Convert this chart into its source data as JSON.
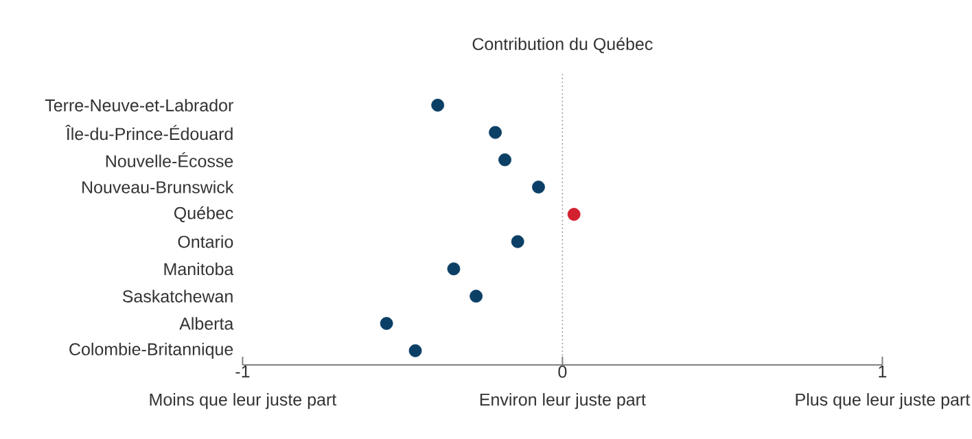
{
  "chart_data": {
    "type": "scatter",
    "title": "Contribution du Québec",
    "orientation": "horizontal",
    "marker": "circle",
    "categories": [
      "Terre-Neuve-et-Labrador",
      "Île-du-Prince-Édouard",
      "Nouvelle-Écosse",
      "Nouveau-Brunswick",
      "Québec",
      "Ontario",
      "Manitoba",
      "Saskatchewan",
      "Alberta",
      "Colombie-Britannique"
    ],
    "values": [
      -0.39,
      -0.21,
      -0.18,
      -0.075,
      0.036,
      -0.14,
      -0.34,
      -0.27,
      -0.55,
      -0.46
    ],
    "colors": [
      "#0b3f66",
      "#0b3f66",
      "#0b3f66",
      "#0b3f66",
      "#d3202f",
      "#0b3f66",
      "#0b3f66",
      "#0b3f66",
      "#0b3f66",
      "#0b3f66"
    ],
    "xlim": [
      -1,
      1
    ],
    "xticks": [
      -1,
      0,
      1
    ],
    "ref_lines": [
      {
        "axis": "x",
        "value": 0,
        "color": "#888888",
        "line_style": "dotted"
      }
    ],
    "annotations": [
      "Moins que leur juste part",
      "Environ leur juste part",
      "Plus que leur juste part"
    ]
  }
}
